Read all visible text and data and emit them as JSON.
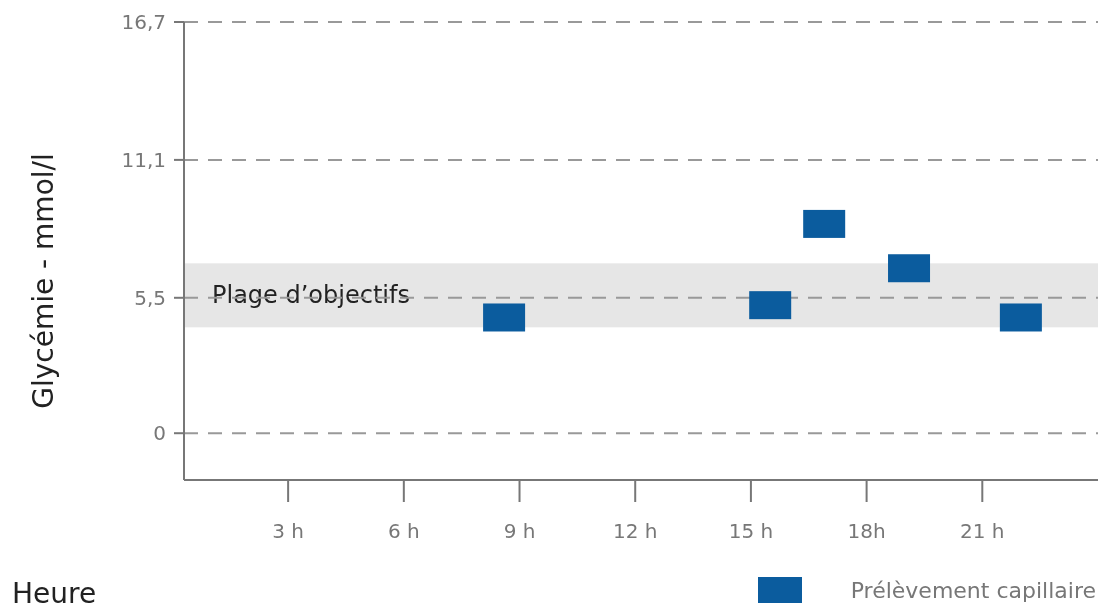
{
  "chart_data": {
    "type": "scatter",
    "xlabel": "Heure",
    "ylabel": "Glycémie - mmol/l",
    "xlim": [
      0.3,
      24
    ],
    "ylim": [
      -1.9,
      16.7
    ],
    "xticks": [
      {
        "value": 3,
        "label": "3 h"
      },
      {
        "value": 6,
        "label": "6 h"
      },
      {
        "value": 9,
        "label": "9 h"
      },
      {
        "value": 12,
        "label": "12 h"
      },
      {
        "value": 15,
        "label": "15 h"
      },
      {
        "value": 18,
        "label": "18h"
      },
      {
        "value": 21,
        "label": "21 h"
      }
    ],
    "yticks": [
      0,
      {
        "value": 5.5,
        "label": "5,5"
      },
      {
        "value": 11.1,
        "label": "11,1"
      },
      {
        "value": 16.7,
        "label": "16,7"
      }
    ],
    "grid": "y",
    "legend": "bottom right",
    "marker": "square",
    "bands": [
      {
        "axis": "y",
        "from": 4.3,
        "to": 6.9,
        "label": "Plage d’objectifs",
        "color": "#e6e6e6"
      }
    ],
    "series": [
      {
        "name": "Prélèvement capillaire",
        "color": "#0b5c9e",
        "x": [
          8.6,
          15.5,
          16.9,
          19.1,
          22.0
        ],
        "values": [
          4.7,
          5.2,
          8.5,
          6.7,
          4.7
        ]
      }
    ]
  }
}
